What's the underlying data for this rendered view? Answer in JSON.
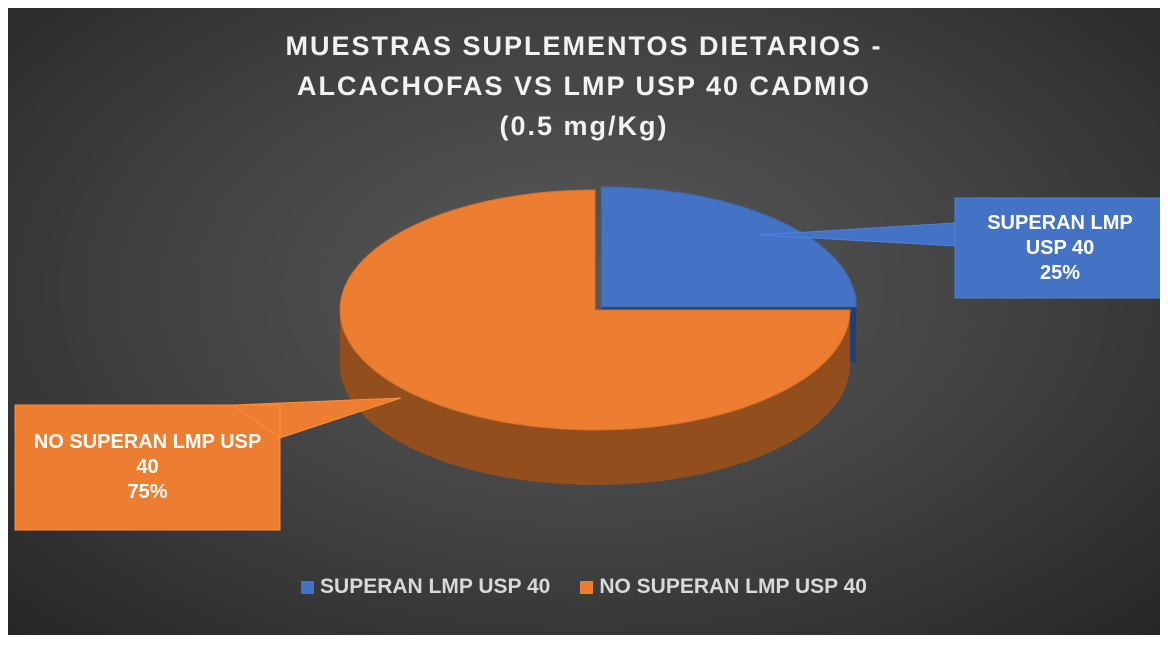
{
  "chart_data": {
    "type": "pie",
    "title": [
      "MUESTRAS SUPLEMENTOS DIETARIOS -",
      "ALCACHOFAS VS LMP USP 40 CADMIO",
      "(0.5 mg/Kg)"
    ],
    "categories": [
      "SUPERAN LMP USP 40",
      "NO SUPERAN LMP USP 40"
    ],
    "values": [
      25,
      75
    ],
    "value_labels": [
      "25%",
      "75%"
    ],
    "colors": [
      "#4472c4",
      "#ed7d31"
    ],
    "legend": "bottom"
  }
}
